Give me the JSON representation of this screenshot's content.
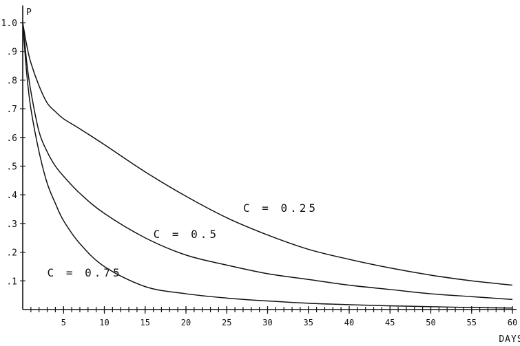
{
  "chart_data": {
    "type": "line",
    "title": "",
    "xlabel": "DAYS",
    "ylabel": "P",
    "xlim": [
      0,
      60
    ],
    "ylim": [
      0,
      1.0
    ],
    "x_minor_tick_step": 1,
    "grid": false,
    "legend": "none",
    "x_ticks": [
      {
        "value": 5,
        "label": "5"
      },
      {
        "value": 10,
        "label": "10"
      },
      {
        "value": 15,
        "label": "15"
      },
      {
        "value": 20,
        "label": "20"
      },
      {
        "value": 25,
        "label": "25"
      },
      {
        "value": 30,
        "label": "30"
      },
      {
        "value": 35,
        "label": "35"
      },
      {
        "value": 40,
        "label": "40"
      },
      {
        "value": 45,
        "label": "45"
      },
      {
        "value": 50,
        "label": "50"
      },
      {
        "value": 55,
        "label": "55"
      },
      {
        "value": 60,
        "label": "60"
      }
    ],
    "y_ticks": [
      {
        "value": 0.1,
        "label": ".1"
      },
      {
        "value": 0.2,
        "label": ".2"
      },
      {
        "value": 0.3,
        "label": ".3"
      },
      {
        "value": 0.4,
        "label": ".4"
      },
      {
        "value": 0.5,
        "label": ".5"
      },
      {
        "value": 0.6,
        "label": ".6"
      },
      {
        "value": 0.7,
        "label": ".7"
      },
      {
        "value": 0.8,
        "label": ".8"
      },
      {
        "value": 0.9,
        "label": ".9"
      },
      {
        "value": 1.0,
        "label": "1.0"
      }
    ],
    "series": [
      {
        "name": "C = 0.25",
        "label_anchor": {
          "x": 27,
          "y": 0.34
        },
        "points": [
          [
            0,
            1.0
          ],
          [
            0.5,
            0.92
          ],
          [
            1,
            0.86
          ],
          [
            2,
            0.78
          ],
          [
            3,
            0.72
          ],
          [
            4,
            0.69
          ],
          [
            5,
            0.665
          ],
          [
            7,
            0.63
          ],
          [
            10,
            0.575
          ],
          [
            15,
            0.48
          ],
          [
            20,
            0.395
          ],
          [
            25,
            0.32
          ],
          [
            30,
            0.26
          ],
          [
            35,
            0.21
          ],
          [
            40,
            0.175
          ],
          [
            45,
            0.145
          ],
          [
            50,
            0.12
          ],
          [
            55,
            0.1
          ],
          [
            60,
            0.085
          ]
        ]
      },
      {
        "name": "C = 0.5",
        "label_anchor": {
          "x": 16,
          "y": 0.25
        },
        "points": [
          [
            0,
            1.0
          ],
          [
            0.5,
            0.86
          ],
          [
            1,
            0.76
          ],
          [
            2,
            0.62
          ],
          [
            3,
            0.55
          ],
          [
            4,
            0.5
          ],
          [
            5,
            0.465
          ],
          [
            7,
            0.405
          ],
          [
            10,
            0.335
          ],
          [
            15,
            0.25
          ],
          [
            20,
            0.19
          ],
          [
            25,
            0.155
          ],
          [
            30,
            0.125
          ],
          [
            35,
            0.105
          ],
          [
            40,
            0.085
          ],
          [
            45,
            0.07
          ],
          [
            50,
            0.055
          ],
          [
            55,
            0.045
          ],
          [
            60,
            0.035
          ]
        ]
      },
      {
        "name": "C = 0.75",
        "label_anchor": {
          "x": 3,
          "y": 0.115
        },
        "points": [
          [
            0,
            1.0
          ],
          [
            0.5,
            0.82
          ],
          [
            1,
            0.7
          ],
          [
            2,
            0.55
          ],
          [
            3,
            0.44
          ],
          [
            4,
            0.37
          ],
          [
            5,
            0.31
          ],
          [
            7,
            0.23
          ],
          [
            10,
            0.15
          ],
          [
            15,
            0.08
          ],
          [
            20,
            0.055
          ],
          [
            25,
            0.04
          ],
          [
            30,
            0.03
          ],
          [
            35,
            0.022
          ],
          [
            40,
            0.017
          ],
          [
            45,
            0.013
          ],
          [
            50,
            0.01
          ],
          [
            55,
            0.007
          ],
          [
            60,
            0.005
          ]
        ]
      }
    ]
  }
}
